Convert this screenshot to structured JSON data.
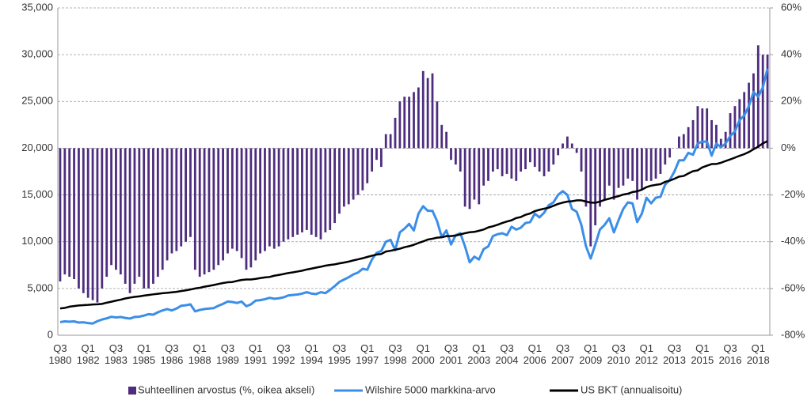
{
  "chart_data": {
    "type": "combo",
    "categories": [
      "Q3 1980",
      null,
      null,
      null,
      null,
      null,
      "Q1 1982",
      null,
      null,
      null,
      null,
      null,
      "Q3 1983",
      null,
      null,
      null,
      null,
      null,
      "Q1 1985",
      null,
      null,
      null,
      null,
      null,
      "Q3 1986",
      null,
      null,
      null,
      null,
      null,
      "Q1 1988",
      null,
      null,
      null,
      null,
      null,
      "Q3 1989",
      null,
      null,
      null,
      null,
      null,
      "Q1 1991",
      null,
      null,
      null,
      null,
      null,
      "Q3 1992",
      null,
      null,
      null,
      null,
      null,
      "Q1 1994",
      null,
      null,
      null,
      null,
      null,
      "Q3 1995",
      null,
      null,
      null,
      null,
      null,
      "Q1 1997",
      null,
      null,
      null,
      null,
      null,
      "Q3 1998",
      null,
      null,
      null,
      null,
      null,
      "Q1 2000",
      null,
      null,
      null,
      null,
      null,
      "Q3 2001",
      null,
      null,
      null,
      null,
      null,
      "Q1 2003",
      null,
      null,
      null,
      null,
      null,
      "Q3 2004",
      null,
      null,
      null,
      null,
      null,
      "Q1 2006",
      null,
      null,
      null,
      null,
      null,
      "Q3 2007",
      null,
      null,
      null,
      null,
      null,
      "Q1 2009",
      null,
      null,
      null,
      null,
      null,
      "Q3 2010",
      null,
      null,
      null,
      null,
      null,
      "Q1 2012",
      null,
      null,
      null,
      null,
      null,
      "Q3 2013",
      null,
      null,
      null,
      null,
      null,
      "Q1 2015",
      null,
      null,
      null,
      null,
      null,
      "Q3 2016",
      null,
      null,
      null,
      null,
      null,
      "Q1 2018",
      null,
      null
    ],
    "ylim": [
      0,
      35000
    ],
    "yticks": [
      0,
      {
        "value": 5000,
        "label": "5,000"
      },
      {
        "value": 10000,
        "label": "10,000"
      },
      {
        "value": 15000,
        "label": "15,000"
      },
      {
        "value": 20000,
        "label": "20,000"
      },
      {
        "value": 25000,
        "label": "25,000"
      },
      {
        "value": 30000,
        "label": "30,000"
      },
      {
        "value": 35000,
        "label": "35,000"
      }
    ],
    "y2lim": [
      -80,
      60
    ],
    "y2ticks": [
      {
        "value": -80,
        "label": "-80%"
      },
      {
        "value": -60,
        "label": "-60%"
      },
      {
        "value": -40,
        "label": "-40%"
      },
      {
        "value": -20,
        "label": "-20%"
      },
      {
        "value": 0,
        "label": "0%"
      },
      {
        "value": 20,
        "label": "20%"
      },
      {
        "value": 40,
        "label": "40%"
      },
      {
        "value": 60,
        "label": "60%"
      }
    ],
    "grid": true,
    "legend": "bottom",
    "series": [
      {
        "name": "Suhteellinen arvostus (%, oikea akseli)",
        "type": "bar",
        "axis": "y2",
        "color": "#4e2d7f",
        "values": [
          -57,
          -54,
          -55,
          -56,
          -60,
          -62,
          -64,
          -65,
          -66,
          -60,
          -55,
          -50,
          -52,
          -54,
          -58,
          -62,
          -58,
          -55,
          -60,
          -60,
          -58,
          -55,
          -52,
          -48,
          -45,
          -44,
          -42,
          -40,
          -38,
          -52,
          -55,
          -54,
          -53,
          -52,
          -50,
          -48,
          -45,
          -43,
          -44,
          -47,
          -52,
          -51,
          -48,
          -45,
          -44,
          -42,
          -43,
          -42,
          -40,
          -39,
          -38,
          -37,
          -36,
          -35,
          -37,
          -38,
          -39,
          -36,
          -35,
          -32,
          -28,
          -25,
          -24,
          -22,
          -20,
          -18,
          -15,
          -10,
          -5,
          -8,
          6,
          6,
          13,
          20,
          22,
          22,
          24,
          26,
          33,
          30,
          32,
          20,
          10,
          7,
          -5,
          -7,
          -10,
          -25,
          -26,
          -22,
          -24,
          -16,
          -14,
          -10,
          -9,
          -12,
          -11,
          -13,
          -14,
          -10,
          -9,
          -6,
          -8,
          -10,
          -12,
          -10,
          -7,
          -3,
          2,
          5,
          2,
          -2,
          -10,
          -25,
          -42,
          -33,
          -25,
          -22,
          -16,
          -22,
          -17,
          -16,
          -13,
          -14,
          -22,
          -18,
          -14,
          -14,
          -13,
          -11,
          -7,
          -4,
          0,
          5,
          6,
          9,
          12,
          18,
          17,
          17,
          12,
          10,
          4,
          7,
          15,
          18,
          21,
          24,
          28,
          32,
          44,
          40,
          40
        ]
      },
      {
        "name": "Wilshire 5000 markkina-arvo",
        "type": "line",
        "color": "#3b8ee8",
        "values": [
          1400,
          1480,
          1450,
          1480,
          1350,
          1380,
          1300,
          1250,
          1500,
          1680,
          1800,
          1970,
          1900,
          1950,
          1850,
          1780,
          1950,
          1980,
          2100,
          2250,
          2200,
          2450,
          2650,
          2800,
          2650,
          2850,
          3150,
          3200,
          3300,
          2550,
          2700,
          2800,
          2850,
          2900,
          3150,
          3350,
          3600,
          3550,
          3450,
          3600,
          3100,
          3300,
          3700,
          3750,
          3850,
          4000,
          3900,
          3950,
          4050,
          4250,
          4300,
          4350,
          4450,
          4600,
          4450,
          4400,
          4600,
          4500,
          4850,
          5250,
          5700,
          5950,
          6200,
          6500,
          6700,
          7100,
          7000,
          8100,
          8800,
          9000,
          10000,
          10200,
          9100,
          11000,
          11400,
          11900,
          11200,
          13000,
          13800,
          13300,
          13300,
          12200,
          10500,
          11200,
          9700,
          10700,
          10900,
          9500,
          7800,
          8400,
          8100,
          9200,
          9500,
          10600,
          10800,
          10900,
          10700,
          11600,
          11300,
          11500,
          12000,
          12100,
          13000,
          12600,
          13100,
          13900,
          14200,
          15000,
          15400,
          15000,
          13500,
          13200,
          11800,
          9500,
          8200,
          9700,
          11300,
          11800,
          12500,
          11000,
          12300,
          13500,
          14200,
          14100,
          12100,
          13000,
          14700,
          14100,
          14700,
          14800,
          16100,
          16600,
          17500,
          18700,
          18700,
          19500,
          19300,
          20500,
          20700,
          20700,
          19200,
          20500,
          20100,
          20500,
          21300,
          21800,
          23000,
          23500,
          24500,
          26000,
          25500,
          26500,
          28500
        ]
      },
      {
        "name": "US BKT (annualisoitu)",
        "type": "line",
        "color": "#000000",
        "values": [
          2860,
          2920,
          3050,
          3120,
          3180,
          3210,
          3240,
          3290,
          3310,
          3350,
          3480,
          3580,
          3700,
          3800,
          3930,
          4020,
          4100,
          4150,
          4240,
          4300,
          4370,
          4430,
          4490,
          4530,
          4590,
          4640,
          4720,
          4800,
          4890,
          5000,
          5070,
          5190,
          5270,
          5370,
          5480,
          5580,
          5660,
          5690,
          5810,
          5910,
          5960,
          5960,
          6020,
          6110,
          6180,
          6230,
          6360,
          6450,
          6540,
          6650,
          6720,
          6810,
          6900,
          7030,
          7120,
          7230,
          7320,
          7440,
          7510,
          7580,
          7680,
          7770,
          7870,
          8000,
          8110,
          8230,
          8370,
          8500,
          8620,
          8690,
          8950,
          9030,
          9140,
          9250,
          9410,
          9520,
          9670,
          9860,
          10030,
          10230,
          10320,
          10430,
          10470,
          10600,
          10600,
          10660,
          10780,
          10910,
          11010,
          11050,
          11170,
          11300,
          11530,
          11650,
          11810,
          12000,
          12160,
          12290,
          12530,
          12640,
          12880,
          13020,
          13270,
          13410,
          13530,
          13640,
          13840,
          14040,
          14180,
          14290,
          14330,
          14420,
          14420,
          14300,
          14180,
          14160,
          14290,
          14470,
          14600,
          14760,
          14870,
          15040,
          15130,
          15310,
          15390,
          15560,
          15840,
          15990,
          16080,
          16150,
          16400,
          16530,
          16730,
          16960,
          17030,
          17300,
          17540,
          17630,
          17950,
          18130,
          18300,
          18310,
          18440,
          18630,
          18800,
          18990,
          19190,
          19360,
          19590,
          19880,
          20160,
          20510,
          20750
        ]
      }
    ]
  }
}
